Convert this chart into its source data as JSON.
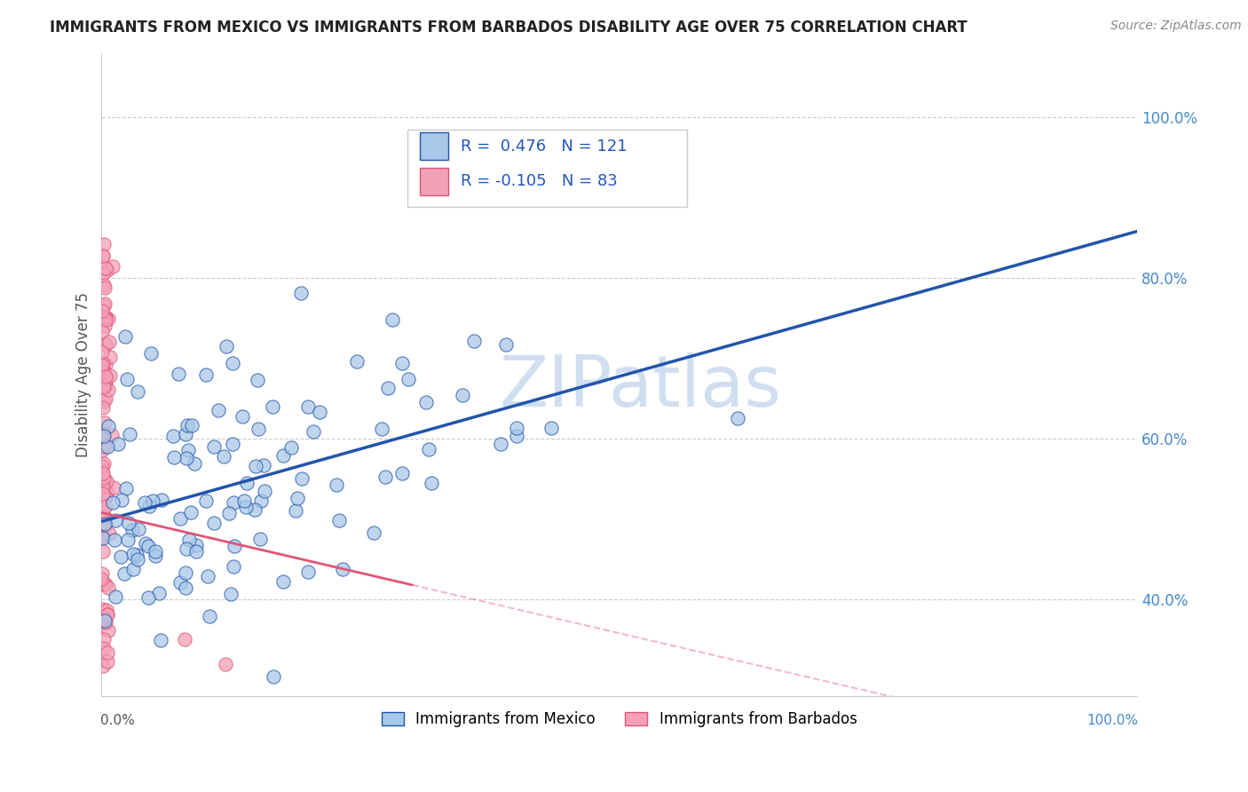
{
  "title": "IMMIGRANTS FROM MEXICO VS IMMIGRANTS FROM BARBADOS DISABILITY AGE OVER 75 CORRELATION CHART",
  "source": "Source: ZipAtlas.com",
  "ylabel": "Disability Age Over 75",
  "r_mexico": 0.476,
  "n_mexico": 121,
  "r_barbados": -0.105,
  "n_barbados": 83,
  "legend1": "Immigrants from Mexico",
  "legend2": "Immigrants from Barbados",
  "color_mexico": "#a8c8e8",
  "color_barbados": "#f4a0b8",
  "line_color_mexico": "#2255aa",
  "line_color_barbados": "#e05575",
  "watermark_color": "#d0dff0",
  "yticks": [
    0.4,
    0.6,
    0.8,
    1.0
  ],
  "ytick_labels": [
    "40.0%",
    "60.0%",
    "80.0%",
    "100.0%"
  ],
  "ymin": 0.28,
  "ymax": 1.08,
  "xmin": 0.0,
  "xmax": 1.0,
  "mexico_line_x": [
    0.0,
    1.0
  ],
  "mexico_line_y": [
    0.497,
    0.858
  ],
  "barbados_line_x": [
    0.0,
    0.3
  ],
  "barbados_line_y": [
    0.508,
    0.415
  ]
}
